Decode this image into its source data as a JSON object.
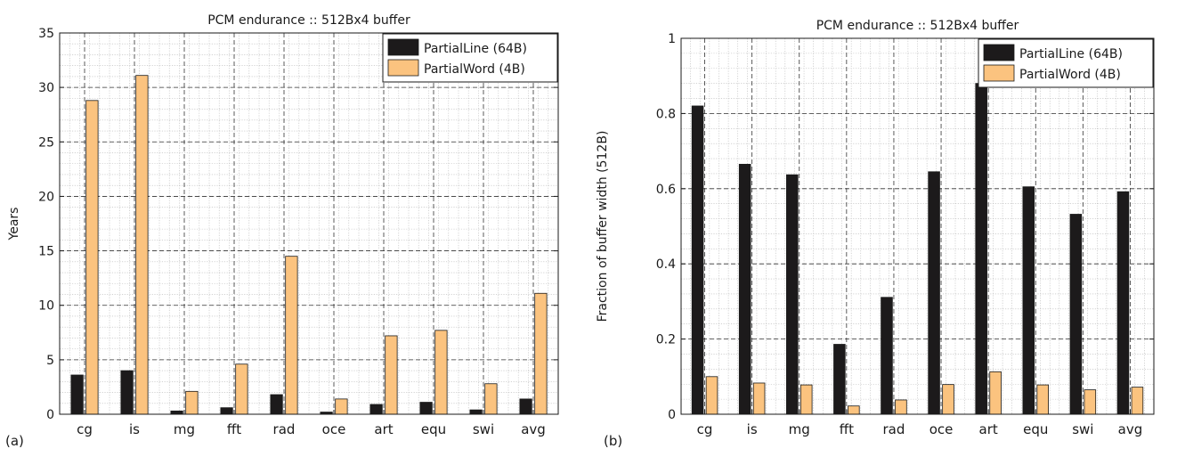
{
  "chart_data": [
    {
      "type": "bar",
      "panel_label": "(a)",
      "title": "PCM endurance :: 512Bx4 buffer",
      "xlabel": "",
      "ylabel": "Years",
      "categories": [
        "cg",
        "is",
        "mg",
        "fft",
        "rad",
        "oce",
        "art",
        "equ",
        "swi",
        "avg"
      ],
      "ylim": [
        0,
        35
      ],
      "yticks": [
        0,
        5,
        10,
        15,
        20,
        25,
        30,
        35
      ],
      "ytick_labels": [
        "0",
        "5",
        "10",
        "15",
        "20",
        "25",
        "30",
        "35"
      ],
      "grid": true,
      "legend_position": "top-right",
      "series": [
        {
          "name": "PartialLine (64B)",
          "color": "#1c1a1b",
          "values": [
            3.6,
            4.0,
            0.3,
            0.6,
            1.8,
            0.2,
            0.9,
            1.1,
            0.4,
            1.4
          ]
        },
        {
          "name": "PartialWord (4B)",
          "color": "#fbc37f",
          "values": [
            28.8,
            31.1,
            2.1,
            4.6,
            14.5,
            1.4,
            7.2,
            7.7,
            2.8,
            11.1
          ]
        }
      ]
    },
    {
      "type": "bar",
      "panel_label": "(b)",
      "title": "PCM endurance :: 512Bx4 buffer",
      "xlabel": "",
      "ylabel": "Fraction of buffer width (512B)",
      "categories": [
        "cg",
        "is",
        "mg",
        "fft",
        "rad",
        "oce",
        "art",
        "equ",
        "swi",
        "avg"
      ],
      "ylim": [
        0,
        1
      ],
      "yticks": [
        0,
        0.2,
        0.4,
        0.6,
        0.8,
        1
      ],
      "ytick_labels": [
        "0",
        "0.2",
        "0.4",
        "0.6",
        "0.8",
        "1"
      ],
      "grid": true,
      "legend_position": "top-right",
      "series": [
        {
          "name": "PartialLine (64B)",
          "color": "#1c1a1b",
          "values": [
            0.82,
            0.665,
            0.637,
            0.186,
            0.311,
            0.645,
            0.88,
            0.605,
            0.532,
            0.592
          ]
        },
        {
          "name": "PartialWord (4B)",
          "color": "#fbc37f",
          "values": [
            0.1,
            0.083,
            0.078,
            0.022,
            0.038,
            0.079,
            0.113,
            0.078,
            0.065,
            0.072
          ]
        }
      ]
    }
  ]
}
